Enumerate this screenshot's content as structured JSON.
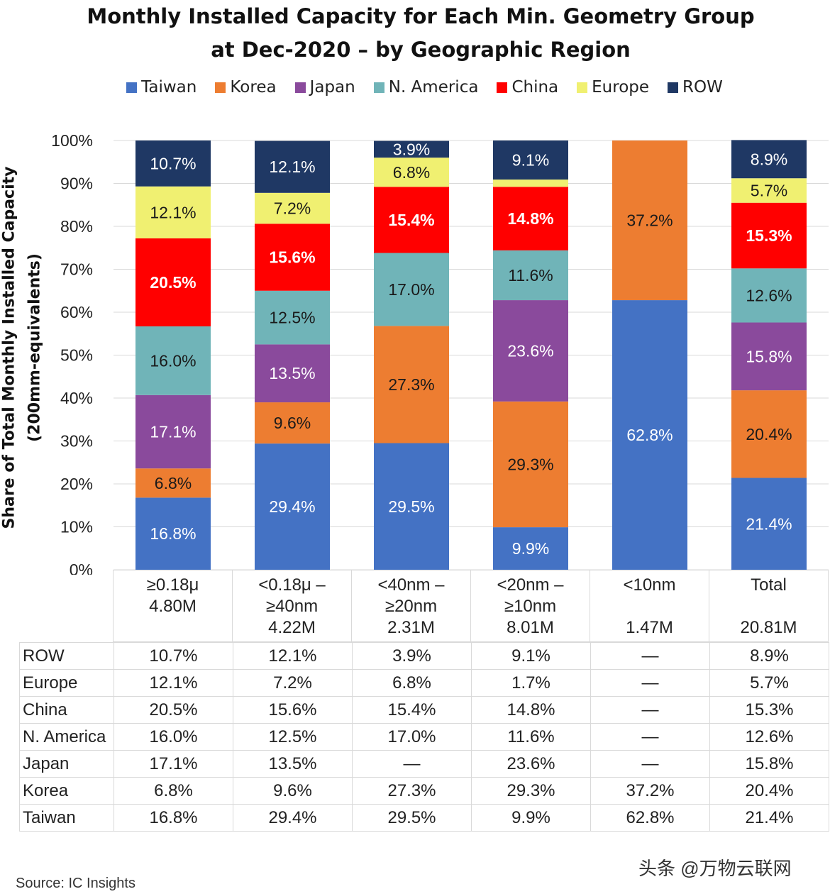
{
  "title_line1": "Monthly Installed Capacity for Each Min. Geometry Group",
  "title_line2": "at Dec-2020 – by Geographic Region",
  "ylabel_line1": "Share of Total Monthly Installed Capacity",
  "ylabel_line2": "(200mm-equivalents)",
  "source": "Source:  IC Insights",
  "watermark": "头条 @万物云联网",
  "chart_data": {
    "type": "bar",
    "stacked": true,
    "title": "Monthly Installed Capacity for Each Min. Geometry Group at Dec-2020 – by Geographic Region",
    "ylabel": "Share of Total Monthly Installed Capacity (200mm-equivalents)",
    "ylim": [
      0,
      100
    ],
    "yticks": [
      "0%",
      "10%",
      "20%",
      "30%",
      "40%",
      "50%",
      "60%",
      "70%",
      "80%",
      "90%",
      "100%"
    ],
    "grid": true,
    "legend_position": "top",
    "categories": [
      {
        "lines": [
          "≥0.18μ",
          "4.80M"
        ]
      },
      {
        "lines": [
          "<0.18μ –",
          "≥40nm",
          "4.22M"
        ]
      },
      {
        "lines": [
          "<40nm –",
          "≥20nm",
          "2.31M"
        ]
      },
      {
        "lines": [
          "<20nm –",
          "≥10nm",
          "8.01M"
        ]
      },
      {
        "lines": [
          "<10nm",
          "",
          "1.47M"
        ]
      },
      {
        "lines": [
          "Total",
          "",
          "20.81M"
        ]
      }
    ],
    "series": [
      {
        "name": "Taiwan",
        "color": "#4472c4",
        "label_color": "#ffffff",
        "values": [
          16.8,
          29.4,
          29.5,
          9.9,
          62.8,
          21.4
        ],
        "labels": [
          "16.8%",
          "29.4%",
          "29.5%",
          "9.9%",
          "62.8%",
          "21.4%"
        ]
      },
      {
        "name": "Korea",
        "color": "#ed7d31",
        "label_color": "#1a1a1a",
        "values": [
          6.8,
          9.6,
          27.3,
          29.3,
          37.2,
          20.4
        ],
        "labels": [
          "6.8%",
          "9.6%",
          "27.3%",
          "29.3%",
          "37.2%",
          "20.4%"
        ]
      },
      {
        "name": "Japan",
        "color": "#8a4a9c",
        "label_color": "#ffffff",
        "values": [
          17.1,
          13.5,
          0,
          23.6,
          0,
          15.8
        ],
        "labels": [
          "17.1%",
          "13.5%",
          "",
          "23.6%",
          "",
          "15.8%"
        ]
      },
      {
        "name": "N. America",
        "color": "#70b4b8",
        "label_color": "#1a1a1a",
        "values": [
          16.0,
          12.5,
          17.0,
          11.6,
          0,
          12.6
        ],
        "labels": [
          "16.0%",
          "12.5%",
          "17.0%",
          "11.6%",
          "",
          "12.6%"
        ]
      },
      {
        "name": "China",
        "color": "#ff0000",
        "label_color": "#ffffff",
        "values": [
          20.5,
          15.6,
          15.4,
          14.8,
          0,
          15.3
        ],
        "labels": [
          "20.5%",
          "15.6%",
          "15.4%",
          "14.8%",
          "",
          "15.3%"
        ]
      },
      {
        "name": "Europe",
        "color": "#f0f071",
        "label_color": "#1a1a1a",
        "values": [
          12.1,
          7.2,
          6.8,
          1.7,
          0,
          5.7
        ],
        "labels": [
          "12.1%",
          "7.2%",
          "6.8%",
          "",
          "",
          "5.7%"
        ]
      },
      {
        "name": "ROW",
        "color": "#1f3864",
        "label_color": "#ffffff",
        "values": [
          10.7,
          12.1,
          3.9,
          9.1,
          0,
          8.9
        ],
        "labels": [
          "10.7%",
          "12.1%",
          "3.9%",
          "9.1%",
          "",
          "8.9%"
        ]
      }
    ]
  },
  "table": {
    "rows": [
      {
        "label": "ROW",
        "cells": [
          "10.7%",
          "12.1%",
          "3.9%",
          "9.1%",
          "—",
          "8.9%"
        ]
      },
      {
        "label": "Europe",
        "cells": [
          "12.1%",
          "7.2%",
          "6.8%",
          "1.7%",
          "—",
          "5.7%"
        ]
      },
      {
        "label": "China",
        "cells": [
          "20.5%",
          "15.6%",
          "15.4%",
          "14.8%",
          "—",
          "15.3%"
        ]
      },
      {
        "label": "N. America",
        "cells": [
          "16.0%",
          "12.5%",
          "17.0%",
          "11.6%",
          "—",
          "12.6%"
        ]
      },
      {
        "label": "Japan",
        "cells": [
          "17.1%",
          "13.5%",
          "—",
          "23.6%",
          "—",
          "15.8%"
        ]
      },
      {
        "label": "Korea",
        "cells": [
          "6.8%",
          "9.6%",
          "27.3%",
          "29.3%",
          "37.2%",
          "20.4%"
        ]
      },
      {
        "label": "Taiwan",
        "cells": [
          "16.8%",
          "29.4%",
          "29.5%",
          "9.9%",
          "62.8%",
          "21.4%"
        ]
      }
    ]
  }
}
